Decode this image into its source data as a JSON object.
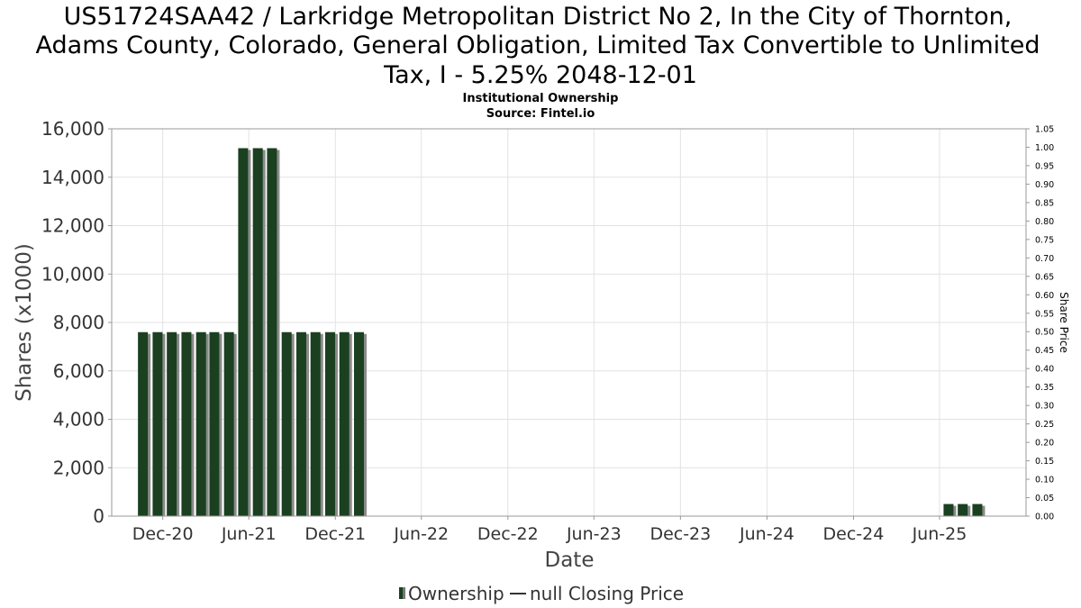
{
  "chart_data": {
    "type": "bar",
    "title_lines": [
      "US51724SAA42 / Larkridge Metropolitan District No 2, In the City of Thornton,",
      "Adams County, Colorado, General Obligation, Limited Tax Convertible to Unlimited",
      "Tax, I - 5.25% 2048-12-01"
    ],
    "subtitle_lines": [
      "Institutional Ownership",
      "Source: Fintel.io"
    ],
    "xlabel": "Date",
    "ylabel": "Shares (x1000)",
    "y2label": "Share Price",
    "ylim": [
      0,
      16000
    ],
    "y_ticks": [
      0,
      2000,
      4000,
      6000,
      8000,
      10000,
      12000,
      14000,
      16000
    ],
    "y_tick_labels": [
      "0",
      "2,000",
      "4,000",
      "6,000",
      "8,000",
      "10,000",
      "12,000",
      "14,000",
      "16,000"
    ],
    "y2lim": [
      0,
      1.05
    ],
    "y2_tick_labels": [
      "0.00",
      "0.05",
      "0.10",
      "0.15",
      "0.20",
      "0.25",
      "0.30",
      "0.35",
      "0.40",
      "0.45",
      "0.50",
      "0.55",
      "0.60",
      "0.65",
      "0.70",
      "0.75",
      "0.80",
      "0.85",
      "0.90",
      "0.95",
      "1.00",
      "1.05"
    ],
    "x_range": [
      "2020-08-15",
      "2025-12-01"
    ],
    "x_ticks": [
      {
        "date": "2020-12-01",
        "label": "Dec-20"
      },
      {
        "date": "2021-06-01",
        "label": "Jun-21"
      },
      {
        "date": "2021-12-01",
        "label": "Dec-21"
      },
      {
        "date": "2022-06-01",
        "label": "Jun-22"
      },
      {
        "date": "2022-12-01",
        "label": "Dec-22"
      },
      {
        "date": "2023-06-01",
        "label": "Jun-23"
      },
      {
        "date": "2023-12-01",
        "label": "Dec-23"
      },
      {
        "date": "2024-06-01",
        "label": "Jun-24"
      },
      {
        "date": "2024-12-01",
        "label": "Dec-24"
      },
      {
        "date": "2025-06-01",
        "label": "Jun-25"
      }
    ],
    "grid": true,
    "legend_placement": "bottom-center",
    "series": [
      {
        "name": "Ownership",
        "color": "#1a4020",
        "points": [
          {
            "date": "2020-10-20",
            "value": 7600
          },
          {
            "date": "2020-11-20",
            "value": 7600
          },
          {
            "date": "2020-12-20",
            "value": 7600
          },
          {
            "date": "2021-01-20",
            "value": 7600
          },
          {
            "date": "2021-02-20",
            "value": 7600
          },
          {
            "date": "2021-03-20",
            "value": 7600
          },
          {
            "date": "2021-04-20",
            "value": 7600
          },
          {
            "date": "2021-05-20",
            "value": 15200
          },
          {
            "date": "2021-06-20",
            "value": 15200
          },
          {
            "date": "2021-07-20",
            "value": 15200
          },
          {
            "date": "2021-08-20",
            "value": 7600
          },
          {
            "date": "2021-09-20",
            "value": 7600
          },
          {
            "date": "2021-10-20",
            "value": 7600
          },
          {
            "date": "2021-11-20",
            "value": 7600
          },
          {
            "date": "2021-12-20",
            "value": 7600
          },
          {
            "date": "2022-01-20",
            "value": 7600
          },
          {
            "date": "2025-06-20",
            "value": 500
          },
          {
            "date": "2025-07-20",
            "value": 500
          },
          {
            "date": "2025-08-20",
            "value": 500
          }
        ]
      },
      {
        "name": "null Closing Price",
        "color": "#333333",
        "points": []
      }
    ]
  }
}
